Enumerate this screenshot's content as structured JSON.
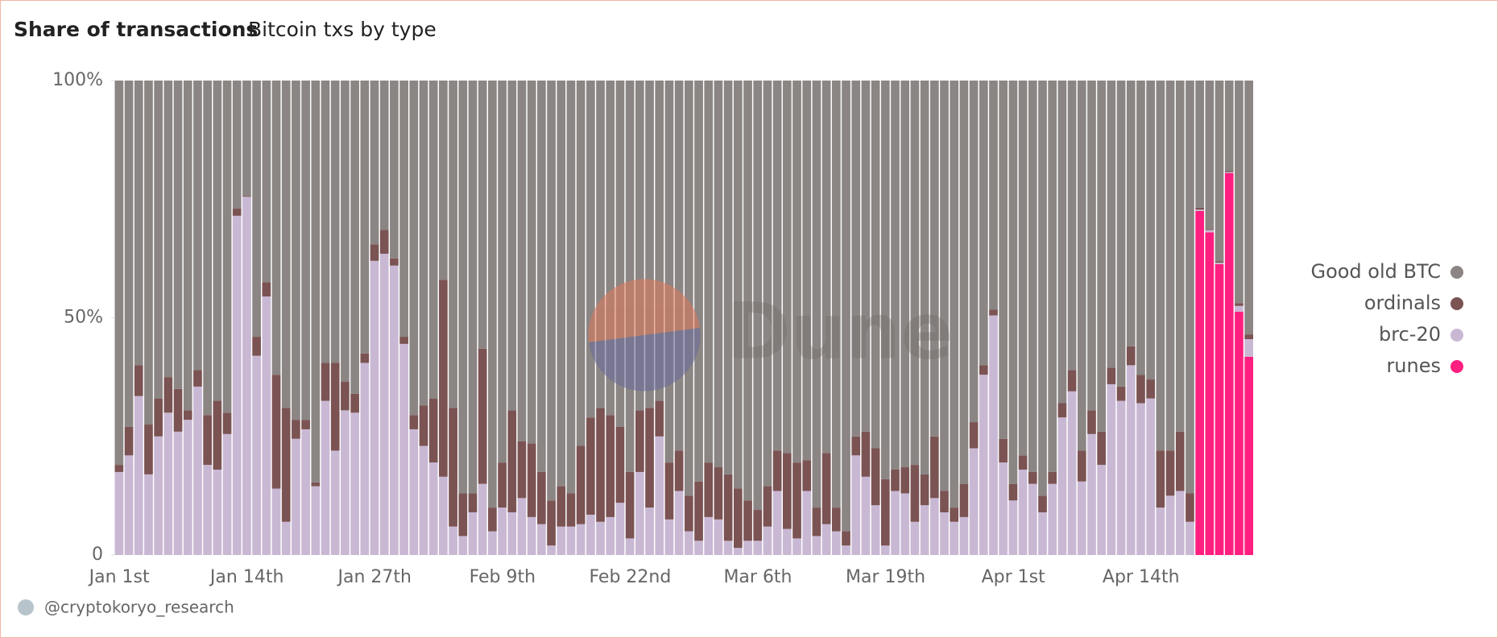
{
  "chart_data": {
    "type": "stacked_bar",
    "title": "Share of transactions",
    "subtitle": "Bitcoin txs by type",
    "watermark": "Dune",
    "footer": "@cryptokoryo_research",
    "categories": [
      "Jan 1st",
      null,
      null,
      null,
      null,
      null,
      null,
      null,
      null,
      null,
      null,
      null,
      null,
      "Jan 14th",
      null,
      null,
      null,
      null,
      null,
      null,
      null,
      null,
      null,
      null,
      null,
      null,
      "Jan 27th",
      null,
      null,
      null,
      null,
      null,
      null,
      null,
      null,
      null,
      null,
      null,
      null,
      "Feb 9th",
      null,
      null,
      null,
      null,
      null,
      null,
      null,
      null,
      null,
      null,
      null,
      null,
      "Feb 22nd",
      null,
      null,
      null,
      null,
      null,
      null,
      null,
      null,
      null,
      null,
      null,
      null,
      "Mar 6th",
      null,
      null,
      null,
      null,
      null,
      null,
      null,
      null,
      null,
      null,
      null,
      null,
      "Mar 19th",
      null,
      null,
      null,
      null,
      null,
      null,
      null,
      null,
      null,
      null,
      null,
      null,
      "Apr 1st",
      null,
      null,
      null,
      null,
      null,
      null,
      null,
      null,
      null,
      null,
      null,
      null,
      "Apr 14th",
      null,
      null,
      null,
      null,
      null,
      null,
      null,
      null,
      null,
      null,
      null
    ],
    "series": [
      {
        "name": "Good old BTC",
        "color": "#8b8584",
        "values": [
          81,
          73,
          60,
          72.5,
          67,
          62.5,
          65,
          69.5,
          61,
          70.5,
          67.5,
          70,
          27,
          24.3,
          54,
          42.5,
          62,
          69,
          71.5,
          71.5,
          84.7,
          59.5,
          59.5,
          63.5,
          66,
          57.5,
          34.5,
          31.5,
          37.5,
          54,
          70.5,
          68.5,
          67,
          42,
          69,
          87,
          87,
          56.5,
          90,
          80.5,
          69.5,
          76,
          76.5,
          82.5,
          88.5,
          85.5,
          87,
          77,
          71,
          69,
          70.5,
          73,
          82.5,
          69.5,
          69,
          67.5,
          80.5,
          78,
          87.5,
          84.5,
          80.5,
          81.5,
          83,
          86,
          88.5,
          90.5,
          85.5,
          78,
          78.5,
          80.5,
          80,
          90,
          78.5,
          90,
          95,
          75,
          74,
          77.5,
          84,
          82,
          81.5,
          81,
          83,
          75,
          86.5,
          90,
          85,
          72,
          60,
          48.3,
          75.5,
          85,
          79,
          82.5,
          87.5,
          82.5,
          68,
          61,
          78,
          69.5,
          74,
          60.5,
          64.5,
          56,
          62,
          63,
          78,
          78,
          74,
          87,
          26.8,
          31.3,
          38.1,
          19.1,
          46.9,
          53.5
        ]
      },
      {
        "name": "ordinals",
        "color": "#7b5353",
        "values": [
          1.5,
          6,
          6.5,
          10.5,
          8,
          7.5,
          9,
          2,
          3.5,
          10.5,
          14.5,
          4.5,
          1.5,
          0.2,
          4,
          3,
          24,
          24,
          4,
          2,
          0.8,
          8,
          18.5,
          6,
          4,
          2,
          3.5,
          5,
          1.5,
          1.5,
          3,
          8.5,
          13.5,
          41.5,
          25,
          9,
          4,
          28.5,
          5,
          9.5,
          21.5,
          12,
          15.5,
          11,
          9.5,
          8.5,
          7,
          16.5,
          20.5,
          24,
          21.5,
          16,
          14,
          13,
          21,
          7.5,
          12,
          8.5,
          7.5,
          12.5,
          11.5,
          11,
          14,
          12.5,
          8.5,
          6.5,
          8.5,
          8.5,
          16,
          16,
          6.5,
          6,
          15,
          5,
          3,
          4,
          9.5,
          12,
          14,
          4.5,
          5.5,
          12,
          6.5,
          13,
          4.5,
          3,
          7,
          5.5,
          2,
          1.2,
          5,
          3.5,
          3,
          2.5,
          3.5,
          2.5,
          3,
          4.5,
          6.5,
          5,
          7,
          3.5,
          3,
          4,
          6,
          4,
          12,
          9.5,
          12.5,
          6,
          0.4,
          0.2,
          0.3,
          0.2,
          0.6,
          1
        ]
      },
      {
        "name": "brc-20",
        "color": "#c9b8d4",
        "values": [
          17.5,
          21,
          33.5,
          17,
          25,
          30,
          26,
          28.5,
          35.5,
          19,
          18,
          25.5,
          71.5,
          75.5,
          42,
          54.5,
          14,
          7,
          24.5,
          26.5,
          14.5,
          32.5,
          22,
          30.5,
          30,
          40.5,
          62,
          63.5,
          61,
          44.5,
          26.5,
          23,
          19.5,
          16.5,
          6,
          4,
          9,
          15,
          5,
          10,
          9,
          12,
          8,
          6.5,
          2,
          6,
          6,
          6.5,
          8.5,
          7,
          8,
          11,
          3.5,
          17.5,
          10,
          25,
          7.5,
          13.5,
          5,
          3,
          8,
          7.5,
          3,
          1.5,
          3,
          3,
          6,
          13.5,
          5.5,
          3.5,
          13.5,
          4,
          6.5,
          5,
          2,
          21,
          16.5,
          10.5,
          2,
          13.5,
          13,
          7,
          10.5,
          12,
          9,
          7,
          8,
          22.5,
          38,
          50.5,
          19.5,
          11.5,
          18,
          15,
          9,
          15,
          29,
          34.5,
          15.5,
          25.5,
          19,
          36,
          32.5,
          40,
          32,
          33,
          10,
          12.5,
          13.5,
          7,
          0.3,
          0.5,
          0.3,
          0.2,
          1.2,
          3.7
        ]
      },
      {
        "name": "runes",
        "color": "#ff1f80",
        "values": [
          0,
          0,
          0,
          0,
          0,
          0,
          0,
          0,
          0,
          0,
          0,
          0,
          0,
          0,
          0,
          0,
          0,
          0,
          0,
          0,
          0,
          0,
          0,
          0,
          0,
          0,
          0,
          0,
          0,
          0,
          0,
          0,
          0,
          0,
          0,
          0,
          0,
          0,
          0,
          0,
          0,
          0,
          0,
          0,
          0,
          0,
          0,
          0,
          0,
          0,
          0,
          0,
          0,
          0,
          0,
          0,
          0,
          0,
          0,
          0,
          0,
          0,
          0,
          0,
          0,
          0,
          0,
          0,
          0,
          0,
          0,
          0,
          0,
          0,
          0,
          0,
          0,
          0,
          0,
          0,
          0,
          0,
          0,
          0,
          0,
          0,
          0,
          0,
          0,
          0,
          0,
          0,
          0,
          0,
          0,
          0,
          0,
          0,
          0,
          0,
          0,
          0,
          0,
          0,
          0,
          0,
          0,
          0,
          0,
          0,
          72.5,
          68,
          61.3,
          80.5,
          51.3,
          41.8
        ]
      }
    ],
    "ylim": [
      0,
      100
    ],
    "yticks": [
      0,
      {
        "value": 50,
        "label": "50%"
      },
      {
        "value": 100,
        "label": "100%"
      }
    ],
    "grid": false,
    "legend": "right"
  }
}
